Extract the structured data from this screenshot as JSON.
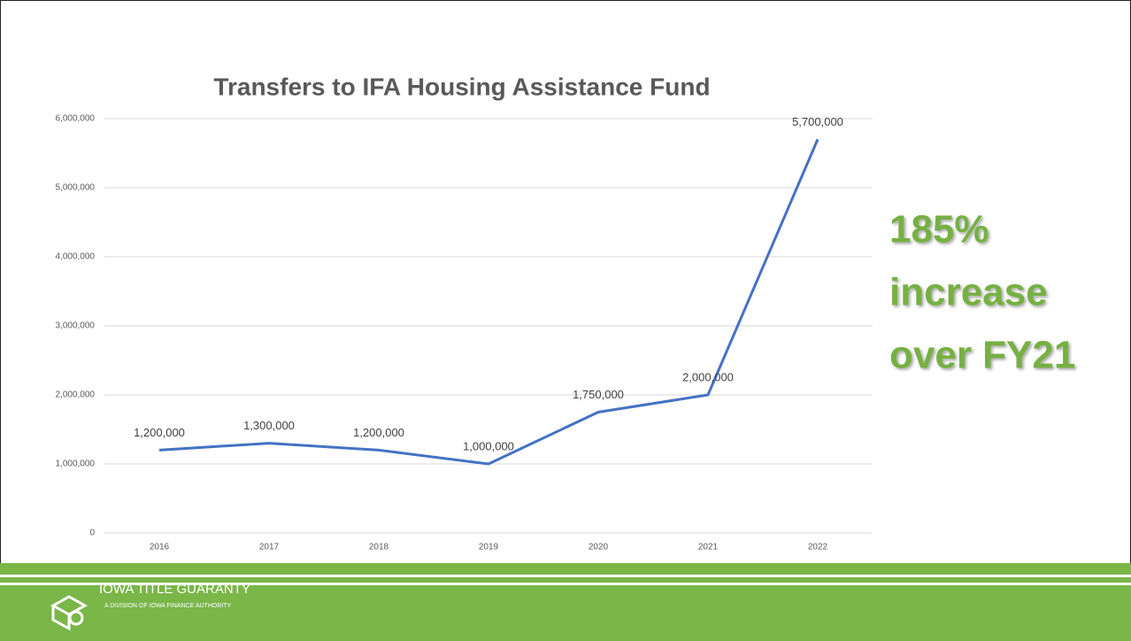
{
  "chart_data": {
    "type": "line",
    "title": "Transfers to IFA Housing Assistance Fund",
    "categories": [
      "2016",
      "2017",
      "2018",
      "2019",
      "2020",
      "2021",
      "2022"
    ],
    "values": [
      1200000,
      1300000,
      1200000,
      1000000,
      1750000,
      2000000,
      5700000
    ],
    "value_labels": [
      "1,200,000",
      "1,300,000",
      "1,200,000",
      "1,000,000",
      "1,750,000",
      "2,000,000",
      "5,700,000"
    ],
    "color": "#4472c4",
    "ylim": [
      0,
      6000000
    ],
    "yticks": [
      0,
      {
        "value": 1000000,
        "label": "1,000,000"
      },
      {
        "value": 2000000,
        "label": "2,000,000"
      },
      {
        "value": 3000000,
        "label": "3,000,000"
      },
      {
        "value": 4000000,
        "label": "4,000,000"
      },
      {
        "value": 5000000,
        "label": "5,000,000"
      },
      {
        "value": 6000000,
        "label": "6,000,000"
      }
    ],
    "grid": true,
    "annotation": [
      "185%",
      "increase",
      "over FY21"
    ]
  },
  "footer": {
    "brand": "IOWA TITLE GUARANTY",
    "subtitle": "A DIVISION OF IOWA FINANCE AUTHORITY"
  }
}
